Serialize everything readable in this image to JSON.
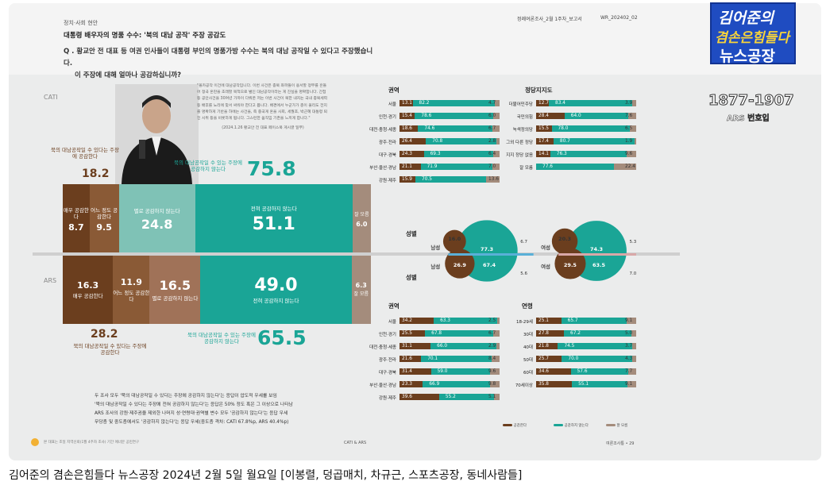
{
  "header": {
    "section": "정치·사회 현안",
    "title": "대통령 배우자의 명품 수수: '북의 대남 공작' 주장 공감도",
    "question_line1": "Q . 황교안 전 대표 등 여권 인사들이 대통령 부인의 명품가방 수수는 북의 대남 공작일 수 있다고 주장했습니다.",
    "question_line2": "이 주장에 대해 얼마나 공감하십니까?",
    "report_meta": "정례여론조사_2월 1주차_보고서",
    "report_code": "WR_202402_02"
  },
  "quote": {
    "text": "\"몰카공작 이건에 대남공작입니다. 이번 사건은 종북 좌파들이 용서할 정부를 흔들어 정국 혼란을 초래할 목적으로 벌인 대남공작이라는 게 진실을 명확합니다. 간첩 등 공안사건을 30여년 가까이 다뤄온 저는 이번 사건이 북한 내지는 국내 종북세력 등 배후를 노리에 맞서 싸워야 한다고 봅니다. 배경에서 누군가가 총이 울리도 전지를 명확하게 기반을 하에는 사건을, 즉 중국게 혼을 사회, 세월호, 박근혜 대통령 퇴진 시위 등을 비롯하게 됩니다. 그스런한 움직임 기존을 느끼게 합니다.\"",
    "source": "(2024.1.26 황교안 전 대표 페이스북 게시글 일부)"
  },
  "chart_data": [
    {
      "type": "bar",
      "title": "CATI",
      "stacked": true,
      "orientation": "horizontal",
      "categories": [
        "매우 공감한다",
        "어느 정도 공감한다",
        "별로 공감하지 않는다",
        "전혀 공감하지 않는다",
        "잘 모름"
      ],
      "values": [
        8.7,
        9.5,
        24.8,
        51.1,
        6.0
      ],
      "agree_total": 18.2,
      "agree_label": "북의 대남공작일 수 있다는 주장에 공감한다",
      "disagree_total": 75.8,
      "disagree_label": "북의 대남공작일 수 있는 주장에 공감하지 않는다"
    },
    {
      "type": "bar",
      "title": "ARS",
      "stacked": true,
      "orientation": "horizontal",
      "categories": [
        "매우 공감한다",
        "어느 정도 공감한다",
        "별로 공감하지 않는다",
        "전혀 공감하지 않는다",
        "잘 모름"
      ],
      "values": [
        16.3,
        11.9,
        16.5,
        49.0,
        6.3
      ],
      "agree_total": 28.2,
      "agree_label": "북의 대남공작일 수 있다는 주장에 공감한다",
      "disagree_total": 65.5,
      "disagree_label": "북의 대남공작일 수 있는 주장에 공감하지 않는다"
    },
    {
      "type": "bar",
      "title": "권역",
      "stacked": true,
      "orientation": "horizontal",
      "categories": [
        "서울",
        "인천·경기",
        "대전·충청·세종",
        "광주·전라",
        "대구·경북",
        "부산·울산·경남",
        "강원·제주"
      ],
      "series": [
        {
          "name": "공감한다",
          "values": [
            13.1,
            15.4,
            18.6,
            26.4,
            24.3,
            21.1,
            15.9
          ]
        },
        {
          "name": "공감하지 않는다",
          "values": [
            82.2,
            78.6,
            74.6,
            70.8,
            69.3,
            71.9,
            70.5
          ]
        },
        {
          "name": "잘 모름",
          "values": [
            4.7,
            6.0,
            6.7,
            2.8,
            6.4,
            7.0,
            13.6
          ]
        }
      ]
    },
    {
      "type": "bar",
      "title": "정당지지도",
      "stacked": true,
      "orientation": "horizontal",
      "categories": [
        "더불어민주당",
        "국민의힘",
        "녹색정의당",
        "그외 다른 정당",
        "지지 정당 없음",
        "잘 모름"
      ],
      "series": [
        {
          "name": "공감한다",
          "values": [
            12.7,
            28.4,
            15.5,
            17.4,
            14.1,
            0
          ]
        },
        {
          "name": "공감하지 않는다",
          "values": [
            83.4,
            64.0,
            78.0,
            80.7,
            76.3,
            77.6
          ]
        },
        {
          "name": "잘 모름",
          "values": [
            3.9,
            7.6,
            6.5,
            1.9,
            9.6,
            22.4
          ]
        }
      ]
    },
    {
      "type": "pie",
      "title": "성별",
      "charts": [
        {
          "name": "남성",
          "values": [
            16.0,
            77.3,
            6.7
          ],
          "second_values": [
            26.9,
            67.4,
            5.6
          ]
        },
        {
          "name": "여성",
          "values": [
            20.3,
            74.3,
            5.3
          ],
          "second_values": [
            29.5,
            63.5,
            7.0
          ]
        }
      ]
    },
    {
      "type": "bar",
      "title": "권역",
      "stacked": true,
      "orientation": "horizontal",
      "categories": [
        "서울",
        "인천·경기",
        "대전·충청·세종",
        "광주·전라",
        "대구·경북",
        "부산·울산·경남",
        "강원·제주"
      ],
      "series": [
        {
          "name": "공감한다",
          "values": [
            34.2,
            25.5,
            31.1,
            21.6,
            31.4,
            23.3,
            39.6
          ]
        },
        {
          "name": "공감하지 않는다",
          "values": [
            63.3,
            67.8,
            66.0,
            70.1,
            59.0,
            66.9,
            55.2
          ]
        },
        {
          "name": "잘 모름",
          "values": [
            2.5,
            6.7,
            2.9,
            8.4,
            9.6,
            9.8,
            5.1
          ]
        }
      ]
    },
    {
      "type": "bar",
      "title": "연령",
      "stacked": true,
      "orientation": "horizontal",
      "categories": [
        "18-29세",
        "30대",
        "40대",
        "50대",
        "60대",
        "70세이상"
      ],
      "series": [
        {
          "name": "공감한다",
          "values": [
            25.1,
            27.8,
            21.8,
            25.7,
            34.6,
            35.8
          ]
        },
        {
          "name": "공감하지 않는다",
          "values": [
            65.7,
            67.2,
            74.5,
            70.0,
            57.6,
            55.1
          ]
        },
        {
          "name": "잘 모름",
          "values": [
            9.1,
            5.0,
            3.7,
            4.3,
            7.7,
            9.1
          ]
        }
      ]
    }
  ],
  "labels": {
    "cati": "CATI",
    "ars": "ARS",
    "gender": "성별",
    "male": "남성",
    "female": "여성",
    "region": "권역",
    "party": "정당지지도",
    "age": "연령",
    "dontknow": "잘 모름"
  },
  "legend": [
    "공감한다",
    "공감하지 않는다",
    "잘 모름"
  ],
  "summary": [
    "두 조사 모두 '북의 대남공작일 수 있다는 주장에 공감하지 않는다'는 응답이 압도적 우세를 보임",
    "'북의 대남공작일 수 있다는 주장에 전혀 공감하지 않는다'는 응답은 50% 정도 혹은 그 이상으로 나타남",
    "ARS 조사의 강원·제주권을 제외한 나머지 성·연령대·권역별 변수 모두 '공감하지 않는다'는 응답 우세",
    "무당층 및 중도층에서도 '공감하지 않는다'는 응답 우세(중도층 격차: CATI 67.8%p, ARS 40.4%p)"
  ],
  "footer": {
    "note": "본 대표는 조일 지역신뢰(1월 4주차 조사) 기간 에너분 공민연구",
    "center": "CATI & ARS",
    "page": "여론조사통 • 29"
  },
  "logo": {
    "line1": "김어준의",
    "line2": "겸손은힘들다",
    "line3": "뉴스공장",
    "number": "1877-1907",
    "sub": "ARS 번호입"
  },
  "caption": "김어준의 겸손은힘들다 뉴스공장 2024년 2월 5일 월요일 [이봉렬, 덩곱매치, 차규근, 스포츠공장, 동네사람들]",
  "colors": {
    "dark_brown": "#6b3e1e",
    "mid_brown": "#8a5a36",
    "light_brown": "#a07258",
    "light_teal": "#7fc2b6",
    "teal": "#1aa596",
    "gray_brown": "#a48c7c",
    "pink": "#d9a8a8"
  }
}
